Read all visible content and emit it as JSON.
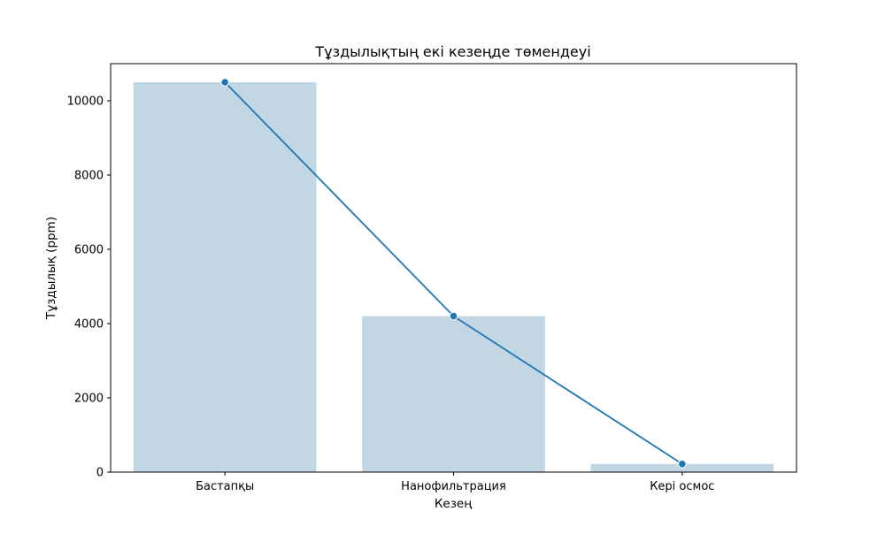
{
  "chart_data": {
    "type": "bar",
    "title": "Тұздылықтың екі кезеңде төмендеуі",
    "xlabel": "Кезең",
    "ylabel": "Тұздылық (ppm)",
    "categories": [
      "Бастапқы",
      "Нанофильтрация",
      "Кері осмос"
    ],
    "series": [
      {
        "values": [
          10500,
          4200,
          220
        ]
      }
    ],
    "line_overlay": true,
    "ylim": [
      0,
      11000
    ],
    "yticks": [
      0,
      2000,
      4000,
      6000,
      8000,
      10000
    ],
    "grid": false,
    "colors": {
      "bar": "#c2d6e4",
      "line": "#1f77b4",
      "marker_edge": "#ffffff"
    }
  }
}
